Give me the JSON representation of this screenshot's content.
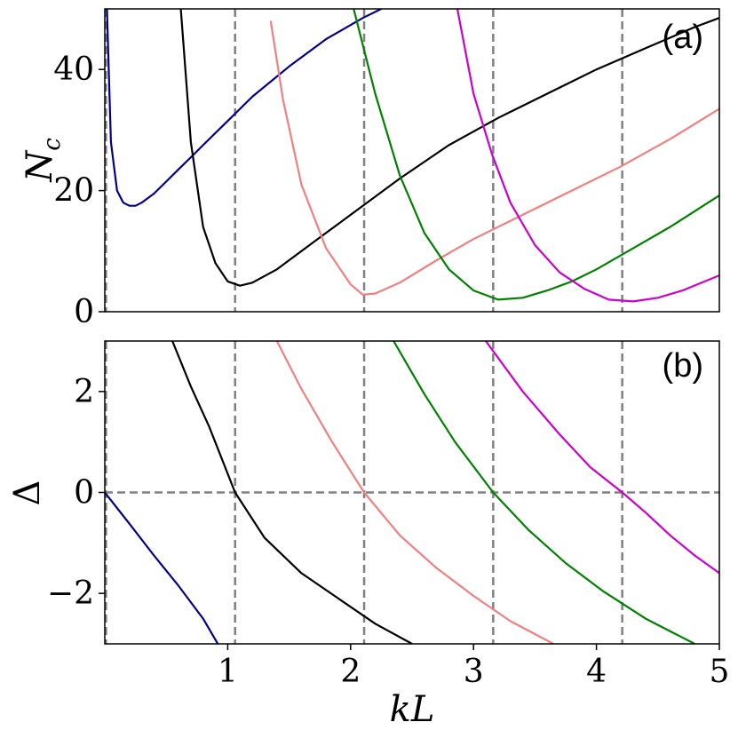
{
  "chart_data": [
    {
      "type": "line",
      "panel_label": "(a)",
      "ylabel": "N_c",
      "xlabel": "",
      "xlim": [
        0,
        5
      ],
      "ylim": [
        0,
        50
      ],
      "yticks": [
        0,
        20,
        40
      ],
      "ytick_labels": [
        "0",
        "20",
        "40"
      ],
      "xticks": [],
      "vlines": [
        0.01,
        1.06,
        2.11,
        3.16,
        4.21
      ],
      "hlines": [],
      "series": [
        {
          "color": "#00008b",
          "x": [
            0.005,
            0.02,
            0.05,
            0.1,
            0.15,
            0.2,
            0.25,
            0.3,
            0.4,
            0.5,
            0.6,
            0.7,
            0.8,
            1.0,
            1.2,
            1.5,
            1.8,
            2.1,
            2.3
          ],
          "y": [
            60,
            48,
            28,
            20,
            18,
            17.5,
            17.5,
            18,
            19.5,
            21.5,
            23.5,
            25.5,
            27.5,
            31.5,
            35.5,
            40.5,
            45,
            48.5,
            50.5
          ]
        },
        {
          "color": "#000000",
          "x": [
            0.6,
            0.7,
            0.8,
            0.9,
            1.0,
            1.1,
            1.2,
            1.4,
            1.6,
            1.8,
            2.0,
            2.4,
            2.8,
            3.2,
            3.6,
            4.0,
            4.4,
            4.8,
            5.0
          ],
          "y": [
            55,
            28,
            14,
            8,
            5,
            4.3,
            4.8,
            7,
            10,
            13,
            16,
            22,
            27.5,
            32,
            36,
            40,
            43.5,
            47,
            48.5
          ]
        },
        {
          "color": "#f08080",
          "x": [
            1.35,
            1.45,
            1.6,
            1.8,
            2.0,
            2.1,
            2.2,
            2.4,
            2.7,
            3.0,
            3.4,
            3.8,
            4.2,
            4.6,
            5.0
          ],
          "y": [
            48,
            35,
            21,
            10.5,
            4.5,
            2.8,
            3,
            4.8,
            8.5,
            12,
            16,
            20,
            24,
            28.5,
            33.5
          ]
        },
        {
          "color": "#008000",
          "x": [
            2.0,
            2.2,
            2.4,
            2.6,
            2.8,
            3.0,
            3.2,
            3.4,
            3.6,
            3.8,
            4.0,
            4.3,
            4.6,
            5.0
          ],
          "y": [
            52,
            36,
            22.5,
            13,
            7,
            3.5,
            2,
            2.3,
            3.5,
            5,
            7,
            10.5,
            14,
            19.2
          ]
        },
        {
          "color": "#cc00cc",
          "x": [
            2.85,
            3.0,
            3.15,
            3.3,
            3.5,
            3.7,
            3.9,
            4.1,
            4.3,
            4.5,
            4.7,
            5.0
          ],
          "y": [
            52,
            36,
            26,
            18,
            11,
            6.5,
            3.8,
            2,
            1.7,
            2.3,
            3.5,
            6
          ]
        }
      ]
    },
    {
      "type": "line",
      "panel_label": "(b)",
      "ylabel": "Δ",
      "xlabel": "kL",
      "xlim": [
        0,
        5
      ],
      "ylim": [
        -3,
        3
      ],
      "yticks": [
        -2,
        0,
        2
      ],
      "ytick_labels": [
        "−2",
        "0",
        "2"
      ],
      "xticks": [
        1,
        2,
        3,
        4,
        5
      ],
      "xtick_labels": [
        "1",
        "2",
        "3",
        "4",
        "5"
      ],
      "vlines": [
        0.01,
        1.06,
        2.11,
        3.16,
        4.21
      ],
      "hlines": [
        0
      ],
      "series": [
        {
          "color": "#00008b",
          "x": [
            0.0,
            0.2,
            0.4,
            0.6,
            0.8,
            0.92
          ],
          "y": [
            0,
            -0.62,
            -1.25,
            -1.85,
            -2.5,
            -3.0
          ]
        },
        {
          "color": "#000000",
          "x": [
            0.55,
            0.7,
            0.85,
            1.06,
            1.3,
            1.6,
            1.9,
            2.2,
            2.5
          ],
          "y": [
            3.0,
            2.1,
            1.3,
            0,
            -0.9,
            -1.6,
            -2.1,
            -2.6,
            -3.0
          ]
        },
        {
          "color": "#f08080",
          "x": [
            1.4,
            1.6,
            1.85,
            2.11,
            2.4,
            2.7,
            3.0,
            3.3,
            3.65
          ],
          "y": [
            3.0,
            2.05,
            1.0,
            0,
            -0.85,
            -1.5,
            -2.05,
            -2.55,
            -3.0
          ]
        },
        {
          "color": "#008000",
          "x": [
            2.35,
            2.6,
            2.85,
            3.16,
            3.45,
            3.75,
            4.05,
            4.4,
            4.8
          ],
          "y": [
            3.0,
            1.95,
            1.0,
            0,
            -0.75,
            -1.4,
            -1.95,
            -2.5,
            -3.0
          ]
        },
        {
          "color": "#cc00cc",
          "x": [
            3.1,
            3.4,
            3.7,
            3.95,
            4.21,
            4.4,
            4.6,
            4.8,
            5.0
          ],
          "y": [
            3.0,
            2.0,
            1.15,
            0.5,
            0,
            -0.4,
            -0.85,
            -1.25,
            -1.6
          ]
        }
      ]
    }
  ]
}
